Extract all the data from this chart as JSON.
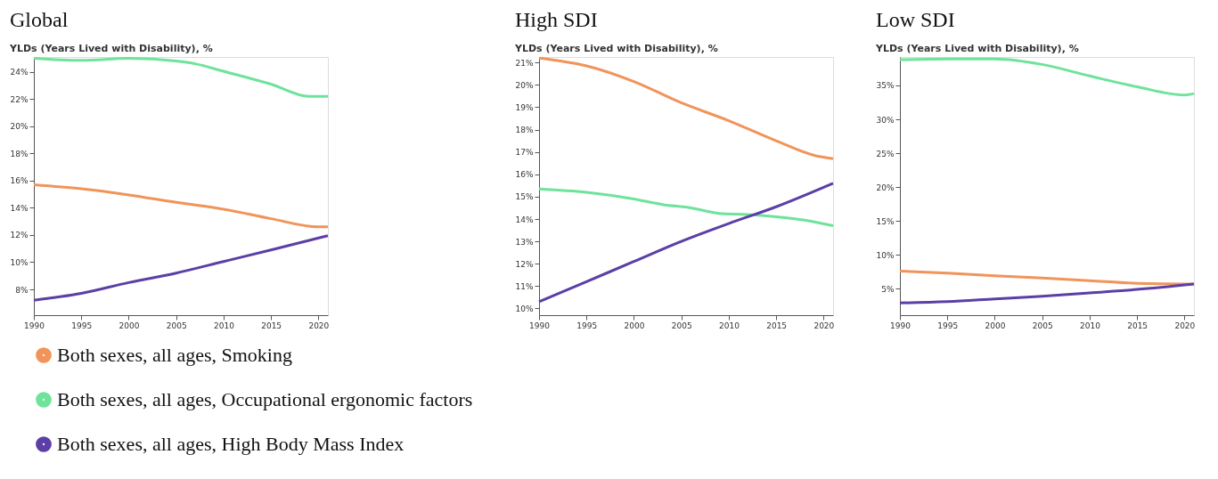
{
  "chart_data": [
    {
      "type": "line",
      "title": "Global",
      "subtitle": "YLDs (Years Lived with Disability), %",
      "legend": "bottom",
      "grid": false,
      "marker": "none",
      "line_style": "solid",
      "xlim": [
        1990,
        2021
      ],
      "xticks": [
        1990,
        1995,
        2000,
        2005,
        2010,
        2015,
        2020
      ],
      "ylim": [
        6.1,
        25.1
      ],
      "yticks": [
        {
          "value": 8,
          "label": "8%"
        },
        {
          "value": 10,
          "label": "10%"
        },
        {
          "value": 12,
          "label": "12%"
        },
        {
          "value": 14,
          "label": "14%"
        },
        {
          "value": 16,
          "label": "16%"
        },
        {
          "value": 18,
          "label": "18%"
        },
        {
          "value": 20,
          "label": "20%"
        },
        {
          "value": 22,
          "label": "22%"
        },
        {
          "value": 24,
          "label": "24%"
        }
      ],
      "series": [
        {
          "name": "Both sexes, all ages, Smoking",
          "color": "#f0945a",
          "x": [
            1990,
            1995,
            2000,
            2005,
            2010,
            2015,
            2020,
            2021
          ],
          "values": [
            15.7,
            15.4,
            14.95,
            14.4,
            13.9,
            13.2,
            12.6,
            12.6
          ]
        },
        {
          "name": "Both sexes, all ages, Occupational ergonomic factors",
          "color": "#6ee39a",
          "x": [
            1990,
            1995,
            2000,
            2005,
            2007,
            2010,
            2015,
            2019,
            2021
          ],
          "values": [
            25.0,
            24.85,
            25.0,
            24.8,
            24.6,
            24.05,
            23.1,
            22.2,
            22.2
          ]
        },
        {
          "name": "Both sexes, all ages, High Body Mass Index",
          "color": "#5b3fa6",
          "x": [
            1990,
            1995,
            2000,
            2005,
            2010,
            2015,
            2021
          ],
          "values": [
            7.2,
            7.7,
            8.5,
            9.2,
            10.05,
            10.9,
            11.95
          ]
        }
      ]
    },
    {
      "type": "line",
      "title": "High SDI",
      "subtitle": "YLDs (Years Lived with Disability), %",
      "grid": false,
      "marker": "none",
      "line_style": "solid",
      "xlim": [
        1990,
        2021
      ],
      "xticks": [
        1990,
        1995,
        2000,
        2005,
        2010,
        2015,
        2020
      ],
      "ylim": [
        9.7,
        21.25
      ],
      "yticks": [
        {
          "value": 10,
          "label": "10%"
        },
        {
          "value": 11,
          "label": "11%"
        },
        {
          "value": 12,
          "label": "12%"
        },
        {
          "value": 13,
          "label": "13%"
        },
        {
          "value": 14,
          "label": "14%"
        },
        {
          "value": 15,
          "label": "15%"
        },
        {
          "value": 16,
          "label": "16%"
        },
        {
          "value": 17,
          "label": "17%"
        },
        {
          "value": 18,
          "label": "18%"
        },
        {
          "value": 19,
          "label": "19%"
        },
        {
          "value": 20,
          "label": "20%"
        },
        {
          "value": 21,
          "label": "21%"
        }
      ],
      "series": [
        {
          "color": "#f0945a",
          "x": [
            1990,
            1995,
            2000,
            2005,
            2010,
            2015,
            2019,
            2021
          ],
          "values": [
            21.2,
            20.85,
            20.15,
            19.2,
            18.4,
            17.5,
            16.85,
            16.7
          ]
        },
        {
          "color": "#6ee39a",
          "x": [
            1990,
            1995,
            2000,
            2003,
            2006,
            2009,
            2012,
            2015,
            2018,
            2021
          ],
          "values": [
            15.35,
            15.2,
            14.9,
            14.65,
            14.5,
            14.25,
            14.2,
            14.1,
            13.95,
            13.7
          ]
        },
        {
          "color": "#5b3fa6",
          "x": [
            1990,
            1995,
            2000,
            2005,
            2010,
            2015,
            2021
          ],
          "values": [
            10.3,
            11.2,
            12.1,
            13.0,
            13.8,
            14.55,
            15.6
          ]
        }
      ]
    },
    {
      "type": "line",
      "title": "Low SDI",
      "subtitle": "YLDs (Years Lived with Disability), %",
      "grid": false,
      "marker": "none",
      "line_style": "solid",
      "xlim": [
        1990,
        2021
      ],
      "xticks": [
        1990,
        1995,
        2000,
        2005,
        2010,
        2015,
        2020
      ],
      "ylim": [
        1.1,
        39.2
      ],
      "yticks": [
        {
          "value": 5,
          "label": "5%"
        },
        {
          "value": 10,
          "label": "10%"
        },
        {
          "value": 15,
          "label": "15%"
        },
        {
          "value": 20,
          "label": "20%"
        },
        {
          "value": 25,
          "label": "25%"
        },
        {
          "value": 30,
          "label": "30%"
        },
        {
          "value": 35,
          "label": "35%"
        }
      ],
      "series": [
        {
          "color": "#f0945a",
          "x": [
            1990,
            1995,
            2000,
            2005,
            2010,
            2015,
            2021
          ],
          "values": [
            7.6,
            7.3,
            6.9,
            6.6,
            6.2,
            5.8,
            5.7
          ]
        },
        {
          "color": "#6ee39a",
          "x": [
            1990,
            1995,
            2000,
            2005,
            2010,
            2015,
            2020,
            2021
          ],
          "values": [
            38.8,
            38.9,
            38.9,
            38.1,
            36.4,
            34.8,
            33.6,
            33.8
          ]
        },
        {
          "color": "#5b3fa6",
          "x": [
            1990,
            1995,
            2000,
            2005,
            2010,
            2015,
            2021
          ],
          "values": [
            2.9,
            3.1,
            3.5,
            3.9,
            4.4,
            4.9,
            5.7
          ]
        }
      ]
    }
  ]
}
